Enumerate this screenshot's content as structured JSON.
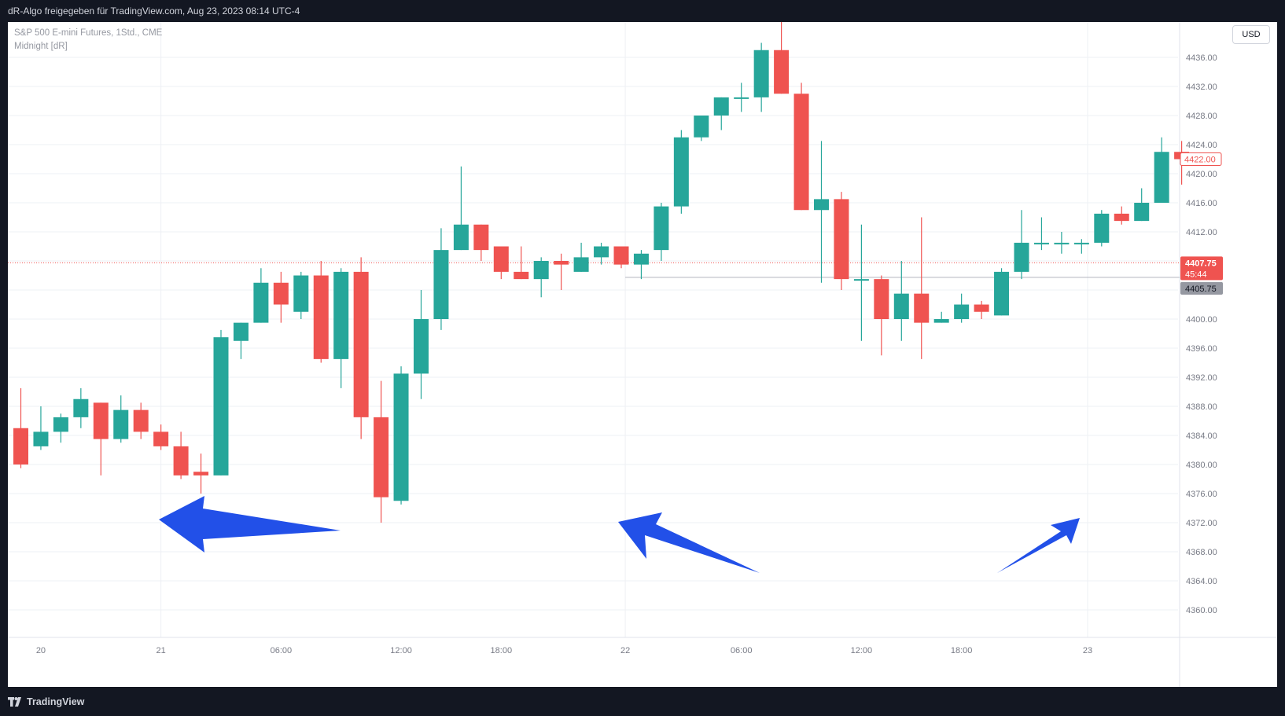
{
  "header": {
    "title": "dR-Algo freigegeben für TradingView.com, Aug 23, 2023 08:14 UTC-4"
  },
  "legend": {
    "symbol": "S&P 500 E-mini Futures, 1Std., CME",
    "indicator": "Midnight [dR]"
  },
  "currency_label": "USD",
  "footer": {
    "brand": "TradingView"
  },
  "colors": {
    "up": "#26a69a",
    "down": "#ef5350",
    "annotation_arrow": "#2250e8",
    "grid": "#eef0f4",
    "midnight_line": "#b2b5be"
  },
  "chart_data": {
    "type": "candlestick",
    "title": "S&P 500 E-mini Futures, 1Std., CME",
    "interval": "1 hour",
    "ylim": [
      4357,
      4442
    ],
    "y_ticks": [
      4360,
      4364,
      4368,
      4372,
      4376,
      4380,
      4384,
      4388,
      4392,
      4396,
      4400,
      4404,
      4408,
      4412,
      4416,
      4420,
      4424,
      4428,
      4432,
      4436
    ],
    "y_tick_labels": [
      "4360.00",
      "4364.00",
      "4368.00",
      "4372.00",
      "4376.00",
      "4380.00",
      "4384.00",
      "4388.00",
      "4392.00",
      "4396.00",
      "4400.00",
      "4404.00",
      "4408.00",
      "4412.00",
      "4416.00",
      "4420.00",
      "4424.00",
      "4428.00",
      "4432.00",
      "4436.00"
    ],
    "x_ticks": [
      {
        "label": "20",
        "bar": 1
      },
      {
        "label": "21",
        "bar": 7
      },
      {
        "label": "06:00",
        "bar": 13
      },
      {
        "label": "12:00",
        "bar": 19
      },
      {
        "label": "18:00",
        "bar": 24
      },
      {
        "label": "22",
        "bar": 30.2
      },
      {
        "label": "06:00",
        "bar": 36
      },
      {
        "label": "12:00",
        "bar": 42
      },
      {
        "label": "18:00",
        "bar": 47
      },
      {
        "label": "23",
        "bar": 53.3
      }
    ],
    "candles": [
      {
        "o": 4385.0,
        "h": 4390.5,
        "l": 4379.5,
        "c": 4380.0
      },
      {
        "o": 4382.5,
        "h": 4388.0,
        "l": 4382.0,
        "c": 4384.5
      },
      {
        "o": 4384.5,
        "h": 4387.0,
        "l": 4383.0,
        "c": 4386.5
      },
      {
        "o": 4386.5,
        "h": 4390.5,
        "l": 4385.0,
        "c": 4389.0
      },
      {
        "o": 4388.5,
        "h": 4388.5,
        "l": 4378.5,
        "c": 4383.5
      },
      {
        "o": 4383.5,
        "h": 4389.5,
        "l": 4383.0,
        "c": 4387.5
      },
      {
        "o": 4387.5,
        "h": 4388.5,
        "l": 4383.5,
        "c": 4384.5
      },
      {
        "o": 4384.5,
        "h": 4385.5,
        "l": 4382.0,
        "c": 4382.5
      },
      {
        "o": 4382.5,
        "h": 4384.5,
        "l": 4378.0,
        "c": 4378.5
      },
      {
        "o": 4379.0,
        "h": 4381.5,
        "l": 4376.0,
        "c": 4378.5
      },
      {
        "o": 4378.5,
        "h": 4398.5,
        "l": 4378.5,
        "c": 4397.5
      },
      {
        "o": 4397.0,
        "h": 4399.5,
        "l": 4394.5,
        "c": 4399.5
      },
      {
        "o": 4399.5,
        "h": 4407.0,
        "l": 4399.5,
        "c": 4405.0
      },
      {
        "o": 4405.0,
        "h": 4406.5,
        "l": 4399.5,
        "c": 4402.0
      },
      {
        "o": 4401.0,
        "h": 4406.5,
        "l": 4400.0,
        "c": 4406.0
      },
      {
        "o": 4406.0,
        "h": 4408.0,
        "l": 4394.0,
        "c": 4394.5
      },
      {
        "o": 4394.5,
        "h": 4407.0,
        "l": 4390.5,
        "c": 4406.5
      },
      {
        "o": 4406.5,
        "h": 4408.5,
        "l": 4383.5,
        "c": 4386.5
      },
      {
        "o": 4386.5,
        "h": 4391.5,
        "l": 4372.0,
        "c": 4375.5
      },
      {
        "o": 4375.0,
        "h": 4393.5,
        "l": 4374.5,
        "c": 4392.5
      },
      {
        "o": 4392.5,
        "h": 4404.0,
        "l": 4389.0,
        "c": 4400.0
      },
      {
        "o": 4400.0,
        "h": 4412.5,
        "l": 4398.5,
        "c": 4409.5
      },
      {
        "o": 4409.5,
        "h": 4421.0,
        "l": 4409.5,
        "c": 4413.0
      },
      {
        "o": 4413.0,
        "h": 4413.0,
        "l": 4408.0,
        "c": 4409.5
      },
      {
        "o": 4410.0,
        "h": 4410.0,
        "l": 4405.5,
        "c": 4406.5
      },
      {
        "o": 4406.5,
        "h": 4410.0,
        "l": 4405.5,
        "c": 4405.5
      },
      {
        "o": 4405.5,
        "h": 4408.5,
        "l": 4403.0,
        "c": 4408.0
      },
      {
        "o": 4408.0,
        "h": 4409.0,
        "l": 4404.0,
        "c": 4407.5
      },
      {
        "o": 4406.5,
        "h": 4410.5,
        "l": 4406.5,
        "c": 4408.5
      },
      {
        "o": 4408.5,
        "h": 4410.5,
        "l": 4407.5,
        "c": 4410.0
      },
      {
        "o": 4410.0,
        "h": 4410.0,
        "l": 4407.0,
        "c": 4407.5
      },
      {
        "o": 4407.5,
        "h": 4409.5,
        "l": 4405.5,
        "c": 4409.0
      },
      {
        "o": 4409.5,
        "h": 4416.0,
        "l": 4408.0,
        "c": 4415.5
      },
      {
        "o": 4415.5,
        "h": 4426.0,
        "l": 4414.5,
        "c": 4425.0
      },
      {
        "o": 4425.0,
        "h": 4428.0,
        "l": 4424.5,
        "c": 4428.0
      },
      {
        "o": 4428.0,
        "h": 4430.5,
        "l": 4426.0,
        "c": 4430.5
      },
      {
        "o": 4430.5,
        "h": 4432.5,
        "l": 4428.5,
        "c": 4430.5
      },
      {
        "o": 4430.5,
        "h": 4438.0,
        "l": 4428.5,
        "c": 4437.0
      },
      {
        "o": 4437.0,
        "h": 4441.0,
        "l": 4431.0,
        "c": 4431.0
      },
      {
        "o": 4431.0,
        "h": 4432.5,
        "l": 4415.0,
        "c": 4415.0
      },
      {
        "o": 4415.0,
        "h": 4424.5,
        "l": 4405.0,
        "c": 4416.5
      },
      {
        "o": 4416.5,
        "h": 4417.5,
        "l": 4404.0,
        "c": 4405.5
      },
      {
        "o": 4405.5,
        "h": 4413.0,
        "l": 4397.0,
        "c": 4405.5
      },
      {
        "o": 4405.5,
        "h": 4406.0,
        "l": 4395.0,
        "c": 4400.0
      },
      {
        "o": 4400.0,
        "h": 4408.0,
        "l": 4397.0,
        "c": 4403.5
      },
      {
        "o": 4403.5,
        "h": 4414.0,
        "l": 4394.5,
        "c": 4399.5
      },
      {
        "o": 4399.5,
        "h": 4401.0,
        "l": 4399.5,
        "c": 4400.0
      },
      {
        "o": 4400.0,
        "h": 4403.5,
        "l": 4399.5,
        "c": 4402.0
      },
      {
        "o": 4402.0,
        "h": 4402.5,
        "l": 4400.0,
        "c": 4401.0
      },
      {
        "o": 4400.5,
        "h": 4407.0,
        "l": 4400.5,
        "c": 4406.5
      },
      {
        "o": 4406.5,
        "h": 4415.0,
        "l": 4405.5,
        "c": 4410.5
      },
      {
        "o": 4410.5,
        "h": 4414.0,
        "l": 4409.5,
        "c": 4410.5
      },
      {
        "o": 4410.5,
        "h": 4412.0,
        "l": 4409.0,
        "c": 4410.5
      },
      {
        "o": 4410.5,
        "h": 4411.0,
        "l": 4409.0,
        "c": 4410.5
      },
      {
        "o": 4410.5,
        "h": 4415.0,
        "l": 4410.0,
        "c": 4414.5
      },
      {
        "o": 4414.5,
        "h": 4415.5,
        "l": 4413.0,
        "c": 4413.5
      },
      {
        "o": 4413.5,
        "h": 4418.0,
        "l": 4413.5,
        "c": 4416.0
      },
      {
        "o": 4416.0,
        "h": 4425.0,
        "l": 4416.0,
        "c": 4423.0
      },
      {
        "o": 4423.0,
        "h": 4424.5,
        "l": 4418.5,
        "c": 4422.0
      }
    ],
    "price_labels": {
      "last": {
        "value": 4422.0,
        "text": "4422.00"
      },
      "current": {
        "value": 4407.75,
        "text": "4407.75",
        "countdown": "45:44"
      },
      "midnight": {
        "value": 4405.75,
        "text": "4405.75"
      }
    },
    "midnight_line_from_bar": 30.2,
    "day_separators": [
      7,
      30.2,
      53.3
    ],
    "annotations": [
      {
        "type": "arrow",
        "points_to_bar": 7,
        "direction": "left"
      },
      {
        "type": "arrow",
        "points_to_bar": 30.2,
        "direction": "up-left"
      },
      {
        "type": "arrow",
        "points_to_bar": 53.3,
        "direction": "up-right"
      }
    ]
  }
}
